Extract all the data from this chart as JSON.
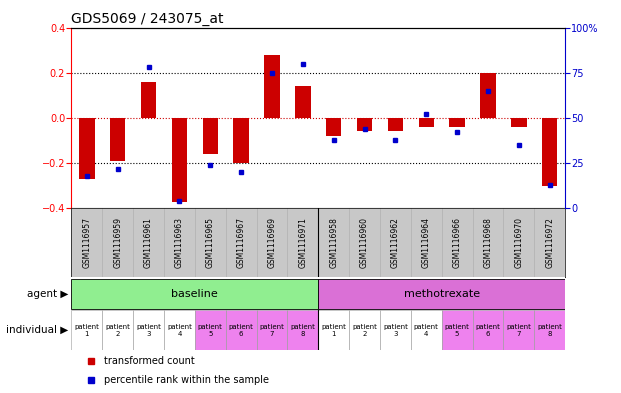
{
  "title": "GDS5069 / 243075_at",
  "samples": [
    "GSM1116957",
    "GSM1116959",
    "GSM1116961",
    "GSM1116963",
    "GSM1116965",
    "GSM1116967",
    "GSM1116969",
    "GSM1116971",
    "GSM1116958",
    "GSM1116960",
    "GSM1116962",
    "GSM1116964",
    "GSM1116966",
    "GSM1116968",
    "GSM1116970",
    "GSM1116972"
  ],
  "red_bars": [
    -0.27,
    -0.19,
    0.16,
    -0.37,
    -0.16,
    -0.2,
    0.28,
    0.14,
    -0.08,
    -0.06,
    -0.06,
    -0.04,
    -0.04,
    0.2,
    -0.04,
    -0.3
  ],
  "blue_dots": [
    18,
    22,
    78,
    4,
    24,
    20,
    75,
    80,
    38,
    44,
    38,
    52,
    42,
    65,
    35,
    13
  ],
  "ylim_left": [
    -0.4,
    0.4
  ],
  "ylim_right": [
    0,
    100
  ],
  "yticks_left": [
    -0.4,
    -0.2,
    0.0,
    0.2,
    0.4
  ],
  "yticks_right": [
    0,
    25,
    50,
    75,
    100
  ],
  "hlines_dotted": [
    0.2,
    -0.2
  ],
  "hline_zero_red": 0.0,
  "agent_groups": [
    {
      "label": "baseline",
      "start": 0,
      "end": 8,
      "color": "#90EE90"
    },
    {
      "label": "methotrexate",
      "start": 8,
      "end": 16,
      "color": "#DA70D6"
    }
  ],
  "individual_labels": [
    "patient\n1",
    "patient\n2",
    "patient\n3",
    "patient\n4",
    "patient\n5",
    "patient\n6",
    "patient\n7",
    "patient\n8",
    "patient\n1",
    "patient\n2",
    "patient\n3",
    "patient\n4",
    "patient\n5",
    "patient\n6",
    "patient\n7",
    "patient\n8"
  ],
  "individual_colors": [
    "#FFFFFF",
    "#FFFFFF",
    "#FFFFFF",
    "#FFFFFF",
    "#EE82EE",
    "#EE82EE",
    "#EE82EE",
    "#EE82EE",
    "#FFFFFF",
    "#FFFFFF",
    "#FFFFFF",
    "#FFFFFF",
    "#EE82EE",
    "#EE82EE",
    "#EE82EE",
    "#EE82EE"
  ],
  "bar_color": "#CC0000",
  "dot_color": "#0000CC",
  "bg_color": "#FFFFFF",
  "zero_line_color": "#CC0000",
  "gsm_bg_color": "#C8C8C8",
  "label_agent": "agent",
  "label_individual": "individual",
  "legend_red": "transformed count",
  "legend_blue": "percentile rank within the sample",
  "title_fontsize": 10,
  "tick_fontsize": 7,
  "bar_width": 0.5
}
